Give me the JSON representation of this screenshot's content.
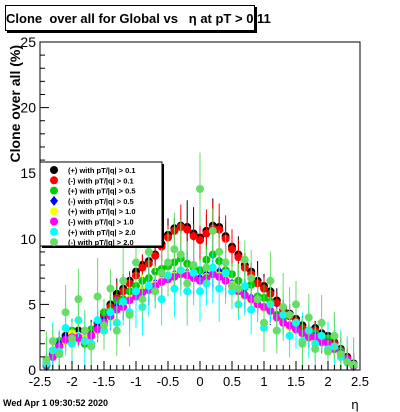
{
  "title": "Clone  over all for Global vs   η at pT > 0.11",
  "footer": "Wed Apr  1 09:30:52 2020",
  "chart_data": {
    "type": "scatter",
    "title": "Clone  over all for Global vs   η at pT > 0.11",
    "xlabel": "η",
    "ylabel": "Clone  over all (%)",
    "xlim": [
      -2.5,
      2.5
    ],
    "ylim": [
      0,
      25
    ],
    "x_ticks": [
      "-2.5",
      "-2",
      "-1.5",
      "-1",
      "-0.5",
      "0",
      "0.5",
      "1",
      "1.5",
      "2",
      "2.5"
    ],
    "y_ticks": [
      "0",
      "5",
      "10",
      "15",
      "20",
      "25"
    ],
    "legend_position": "middle-left",
    "x": [
      -2.4,
      -2.3,
      -2.2,
      -2.1,
      -2.0,
      -1.9,
      -1.8,
      -1.7,
      -1.6,
      -1.5,
      -1.4,
      -1.3,
      -1.2,
      -1.1,
      -1.0,
      -0.9,
      -0.8,
      -0.7,
      -0.6,
      -0.5,
      -0.4,
      -0.3,
      -0.2,
      -0.1,
      0.0,
      0.1,
      0.2,
      0.3,
      0.4,
      0.5,
      0.6,
      0.7,
      0.8,
      0.9,
      1.0,
      1.1,
      1.2,
      1.3,
      1.4,
      1.5,
      1.6,
      1.7,
      1.8,
      1.9,
      2.0,
      2.1,
      2.2,
      2.3,
      2.4
    ],
    "series": [
      {
        "name": "(+) with pT/|q| > 0.1",
        "color": "#000000",
        "marker": "circle",
        "values": [
          0.5,
          1.2,
          2.0,
          2.6,
          2.8,
          3.0,
          2.4,
          2.9,
          3.6,
          4.2,
          5.0,
          5.8,
          6.2,
          6.8,
          7.5,
          8.0,
          8.3,
          8.8,
          9.6,
          10.3,
          10.8,
          11.0,
          10.9,
          10.4,
          10.1,
          10.6,
          11.0,
          10.9,
          10.2,
          9.4,
          8.8,
          8.0,
          7.5,
          6.8,
          6.4,
          6.0,
          5.3,
          4.6,
          4.3,
          3.9,
          3.4,
          3.0,
          3.2,
          2.8,
          2.6,
          2.1,
          1.6,
          1.0,
          0.5
        ]
      },
      {
        "name": "(-) with pT/|q| > 0.1",
        "color": "#ff0000",
        "marker": "circle",
        "values": [
          0.4,
          1.0,
          1.8,
          2.4,
          2.7,
          2.6,
          2.2,
          2.8,
          3.4,
          4.0,
          4.8,
          5.5,
          6.0,
          6.6,
          7.2,
          7.8,
          8.1,
          8.7,
          9.4,
          10.1,
          10.6,
          10.9,
          10.7,
          10.2,
          9.9,
          10.4,
          10.8,
          10.7,
          10.0,
          9.2,
          8.6,
          7.8,
          7.3,
          6.6,
          6.2,
          5.8,
          5.1,
          4.4,
          4.1,
          3.7,
          3.2,
          2.8,
          3.0,
          2.6,
          2.4,
          2.0,
          1.5,
          0.9,
          0.4
        ]
      },
      {
        "name": "(+) with pT/|q| > 0.5",
        "color": "#00cc00",
        "marker": "circle",
        "values": [
          0.3,
          1.4,
          2.2,
          2.2,
          3.0,
          2.4,
          2.0,
          3.1,
          3.2,
          4.4,
          4.5,
          5.3,
          5.4,
          6.0,
          6.4,
          6.8,
          7.0,
          7.5,
          7.7,
          7.9,
          8.2,
          8.5,
          8.1,
          7.8,
          7.6,
          8.4,
          8.8,
          8.3,
          7.6,
          7.3,
          6.8,
          6.3,
          6.5,
          5.6,
          5.5,
          5.2,
          4.2,
          4.0,
          3.4,
          3.6,
          2.9,
          2.5,
          2.8,
          2.1,
          2.4,
          1.6,
          1.4,
          0.8,
          0.4
        ]
      },
      {
        "name": "(-) with pT/|q| > 0.5",
        "color": "#0000ff",
        "marker": "diamond",
        "values": [
          0.3,
          1.1,
          2.0,
          2.5,
          2.6,
          2.7,
          2.3,
          2.7,
          3.3,
          3.8,
          4.2,
          4.8,
          5.0,
          5.4,
          5.8,
          6.0,
          6.3,
          6.6,
          6.9,
          7.1,
          7.3,
          7.5,
          7.4,
          7.2,
          7.0,
          7.3,
          7.6,
          7.5,
          7.0,
          6.6,
          6.2,
          5.8,
          5.5,
          5.1,
          4.8,
          4.6,
          4.1,
          3.7,
          3.4,
          3.2,
          2.9,
          2.5,
          2.6,
          2.3,
          2.1,
          1.7,
          1.3,
          0.8,
          0.3
        ]
      },
      {
        "name": "(+) with pT/|q| > 1.0",
        "color": "#ffff00",
        "marker": "circle",
        "values": [
          0.4,
          1.0,
          1.6,
          2.2,
          2.8,
          2.6,
          2.4,
          2.5,
          3.0,
          3.5,
          4.0,
          4.6,
          4.9,
          5.4,
          5.7,
          6.1,
          6.3,
          6.5,
          6.8,
          7.0,
          7.2,
          7.6,
          7.3,
          7.0,
          6.8,
          7.1,
          7.5,
          7.2,
          6.9,
          6.5,
          6.0,
          5.6,
          5.3,
          5.0,
          4.7,
          4.5,
          4.0,
          3.6,
          3.3,
          3.0,
          2.8,
          2.4,
          2.5,
          2.2,
          2.0,
          1.6,
          1.2,
          0.7,
          0.3
        ]
      },
      {
        "name": "(-) with pT/|q| > 1.0",
        "color": "#ff00ff",
        "marker": "circle",
        "values": [
          0.4,
          1.0,
          1.8,
          2.3,
          2.5,
          2.5,
          2.2,
          2.6,
          3.1,
          3.6,
          4.1,
          4.6,
          4.8,
          5.3,
          5.6,
          5.9,
          6.1,
          6.4,
          6.7,
          6.9,
          7.1,
          7.3,
          7.2,
          7.0,
          6.8,
          7.0,
          7.3,
          7.1,
          6.8,
          6.4,
          6.0,
          5.7,
          5.4,
          5.0,
          4.8,
          4.5,
          4.0,
          3.6,
          3.4,
          3.1,
          2.8,
          2.5,
          2.5,
          2.2,
          2.0,
          1.6,
          1.2,
          0.8,
          0.3
        ]
      },
      {
        "name": "(+) with pT/|q| > 2.0",
        "color": "#00ffff",
        "marker": "circle",
        "values": [
          0.5,
          1.5,
          1.4,
          3.2,
          2.0,
          3.8,
          2.2,
          2.0,
          3.8,
          3.0,
          4.4,
          3.6,
          5.2,
          4.4,
          6.0,
          4.8,
          6.4,
          6.0,
          5.4,
          7.2,
          6.2,
          7.6,
          6.0,
          7.4,
          6.0,
          6.6,
          7.8,
          6.2,
          7.4,
          6.0,
          5.0,
          6.4,
          4.6,
          5.4,
          3.2,
          5.0,
          3.0,
          4.2,
          2.6,
          3.6,
          2.2,
          3.0,
          2.0,
          2.6,
          1.6,
          1.8,
          1.0,
          0.6,
          0.4
        ]
      },
      {
        "name": "(-) with pT/|q| > 2.0",
        "color": "#66dd66",
        "marker": "circle",
        "values": [
          0.8,
          2.2,
          1.2,
          4.4,
          2.4,
          5.4,
          3.0,
          1.8,
          5.6,
          3.4,
          6.2,
          3.0,
          6.8,
          4.2,
          8.2,
          5.4,
          9.0,
          6.0,
          7.4,
          8.2,
          9.2,
          8.8,
          6.6,
          8.0,
          13.8,
          7.8,
          10.6,
          9.0,
          8.2,
          6.4,
          6.2,
          8.4,
          7.0,
          5.4,
          3.6,
          6.8,
          3.0,
          4.8,
          4.2,
          5.0,
          2.0,
          4.0,
          1.6,
          3.6,
          1.4,
          2.6,
          1.2,
          0.6,
          0.4
        ]
      }
    ]
  }
}
